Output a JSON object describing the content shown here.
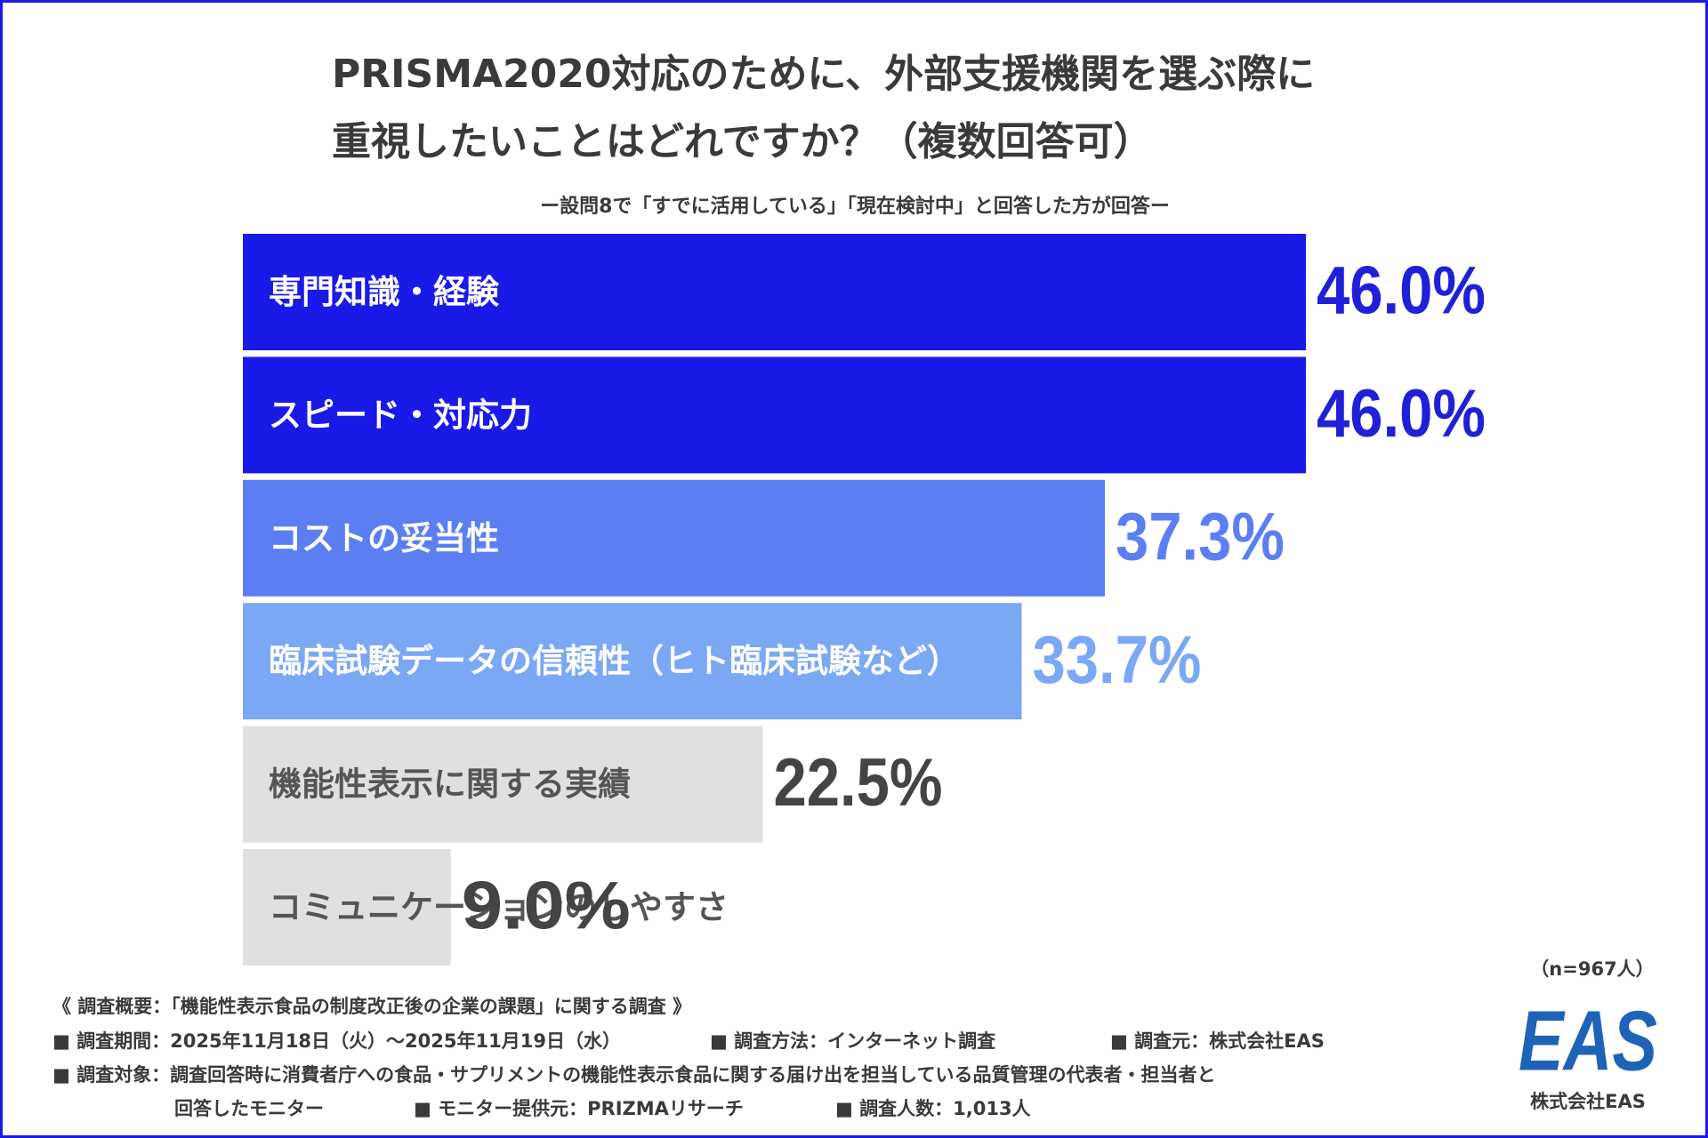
{
  "chart_data": {
    "type": "bar",
    "orientation": "horizontal",
    "title": [
      "PRISMA2020対応のために、外部支援機関を選ぶ際に",
      "重視したいことはどれですか？（複数回答可）"
    ],
    "subtitle": "ー設問8で「すでに活用している」「現在検討中」と回答した方が回答ー",
    "categories": [
      "専門知識・経験",
      "スピード・対応力",
      "コストの妥当性",
      "臨床試験データの信頼性（ヒト臨床試験など）",
      "機能性表示に関する実績",
      "コミュニケーションのしやすさ"
    ],
    "values": [
      46.0,
      46.0,
      37.3,
      33.7,
      22.5,
      9.0
    ],
    "value_labels": [
      "46.0%",
      "46.0%",
      "37.3%",
      "33.7%",
      "22.5%",
      "9.0%"
    ],
    "colors": [
      "#1a1ae8",
      "#1a1ae8",
      "#5b7ff3",
      "#7ba8f5",
      "#e0e0e0",
      "#e0e0e0"
    ],
    "value_label_colors": [
      "#2020d8",
      "#2020d8",
      "#5b7ff3",
      "#7ba8f5",
      "#444444",
      "#444444"
    ],
    "category_label_colors": [
      "#ffffff",
      "#ffffff",
      "#ffffff",
      "#ffffff",
      "#555555",
      "#555555"
    ],
    "sample_size": "（n=967人）"
  },
  "footer": {
    "overview": "《 調査概要：「機能性表示食品の制度改正後の企業の課題」に関する調査 》",
    "period": "■ 調査期間：2025年11月18日（火）〜2025年11月19日（水）",
    "method": "■ 調査方法：インターネット調査",
    "source": "■ 調査元：株式会社EAS",
    "target": "■ 調査対象：調査回答時に消費者庁への食品・サプリメントの機能性表示食品に関する届け出を担当している品質管理の代表者・担当者と",
    "target_cont": "回答したモニター",
    "provider": "■ モニター提供元：PRIZMAリサーチ",
    "respondents": "■ 調査人数：1,013人"
  },
  "logo": {
    "mark": "EAS",
    "company": "株式会社EAS"
  }
}
